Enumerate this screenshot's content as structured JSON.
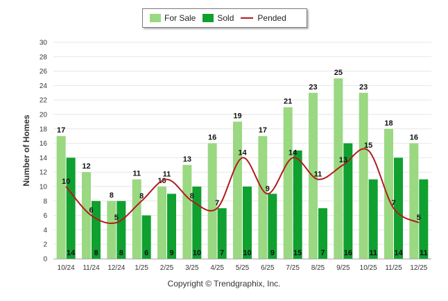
{
  "legend": {
    "for_sale": "For Sale",
    "sold": "Sold",
    "pended": "Pended"
  },
  "copyright": "Copyright © Trendgraphix, Inc.",
  "colors": {
    "for_sale": "#9ad882",
    "sold": "#10a030",
    "pended": "#b01c1c"
  },
  "chart_data": {
    "type": "bar",
    "title": "",
    "xlabel": "",
    "ylabel": "Number of Homes",
    "ylim": [
      0,
      30
    ],
    "ytick_step": 2,
    "categories": [
      "10/24",
      "11/24",
      "12/24",
      "1/25",
      "2/25",
      "3/25",
      "4/25",
      "5/25",
      "6/25",
      "7/25",
      "8/25",
      "9/25",
      "10/25",
      "11/25",
      "12/25"
    ],
    "series": [
      {
        "name": "For Sale",
        "type": "bar",
        "values": [
          17,
          12,
          8,
          11,
          10,
          13,
          16,
          19,
          17,
          21,
          23,
          25,
          23,
          18,
          16
        ]
      },
      {
        "name": "Sold",
        "type": "bar",
        "values": [
          14,
          8,
          8,
          6,
          9,
          10,
          7,
          10,
          9,
          15,
          7,
          16,
          11,
          14,
          11
        ]
      },
      {
        "name": "Pended",
        "type": "line",
        "values": [
          10,
          6,
          5,
          8,
          11,
          8,
          7,
          14,
          9,
          14,
          11,
          13,
          15,
          7,
          5
        ]
      }
    ]
  }
}
